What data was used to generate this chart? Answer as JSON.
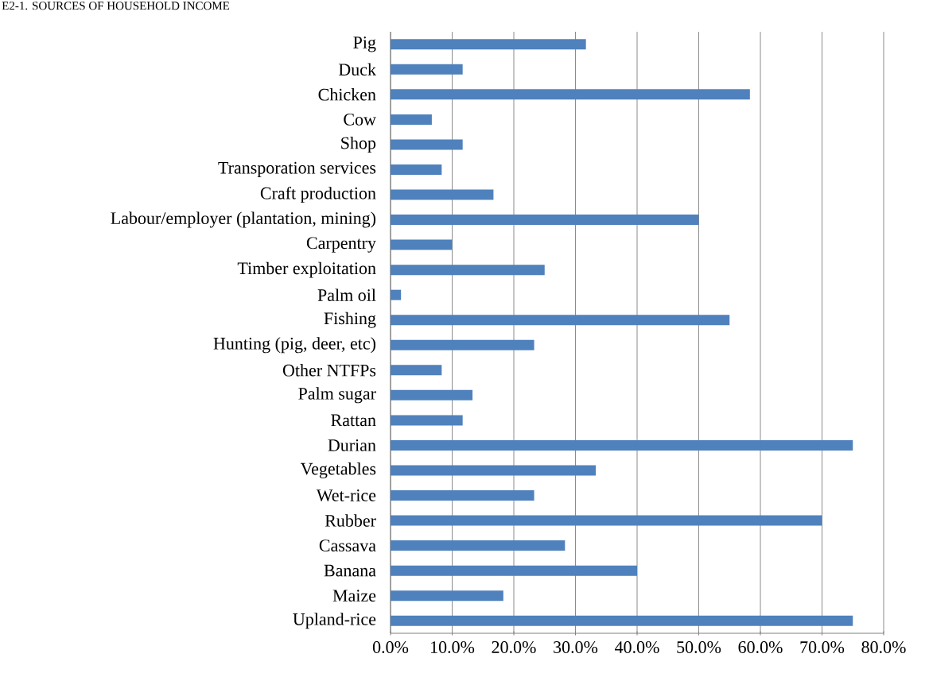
{
  "chart_data": {
    "type": "bar",
    "orientation": "horizontal",
    "title": "E2-1. SOURCES OF HOUSEHOLD INCOME",
    "categories": [
      "Pig",
      "Duck",
      "Chicken",
      "Cow",
      "Shop",
      "Transporation services",
      "Craft production",
      "Labour/employer (plantation, mining)",
      "Carpentry",
      "Timber exploitation",
      "Palm oil",
      "Fishing",
      "Hunting (pig, deer, etc)",
      "Other NTFPs",
      "Palm sugar",
      "Rattan",
      "Durian",
      "Vegetables",
      "Wet-rice",
      "Rubber",
      "Cassava",
      "Banana",
      "Maize",
      "Upland-rice"
    ],
    "values": [
      31.7,
      11.7,
      58.3,
      6.7,
      11.7,
      8.3,
      16.7,
      50,
      10,
      25,
      1.7,
      55,
      23.3,
      8.3,
      13.3,
      11.7,
      75,
      33.3,
      23.3,
      70,
      28.3,
      40,
      18.3,
      75
    ],
    "color": "#4f81bd",
    "xlim": [
      0,
      80
    ],
    "xticks": [
      {
        "value": 0,
        "label": "0.0%"
      },
      {
        "value": 10,
        "label": "10.0%"
      },
      {
        "value": 20,
        "label": "20.0%"
      },
      {
        "value": 30,
        "label": "30.0%"
      },
      {
        "value": 40,
        "label": "40.0%"
      },
      {
        "value": 50,
        "label": "50.0%"
      },
      {
        "value": 60,
        "label": "60.0%"
      },
      {
        "value": 70,
        "label": "70.0%"
      },
      {
        "value": 80,
        "label": "80.0%"
      }
    ],
    "grid": "x"
  }
}
